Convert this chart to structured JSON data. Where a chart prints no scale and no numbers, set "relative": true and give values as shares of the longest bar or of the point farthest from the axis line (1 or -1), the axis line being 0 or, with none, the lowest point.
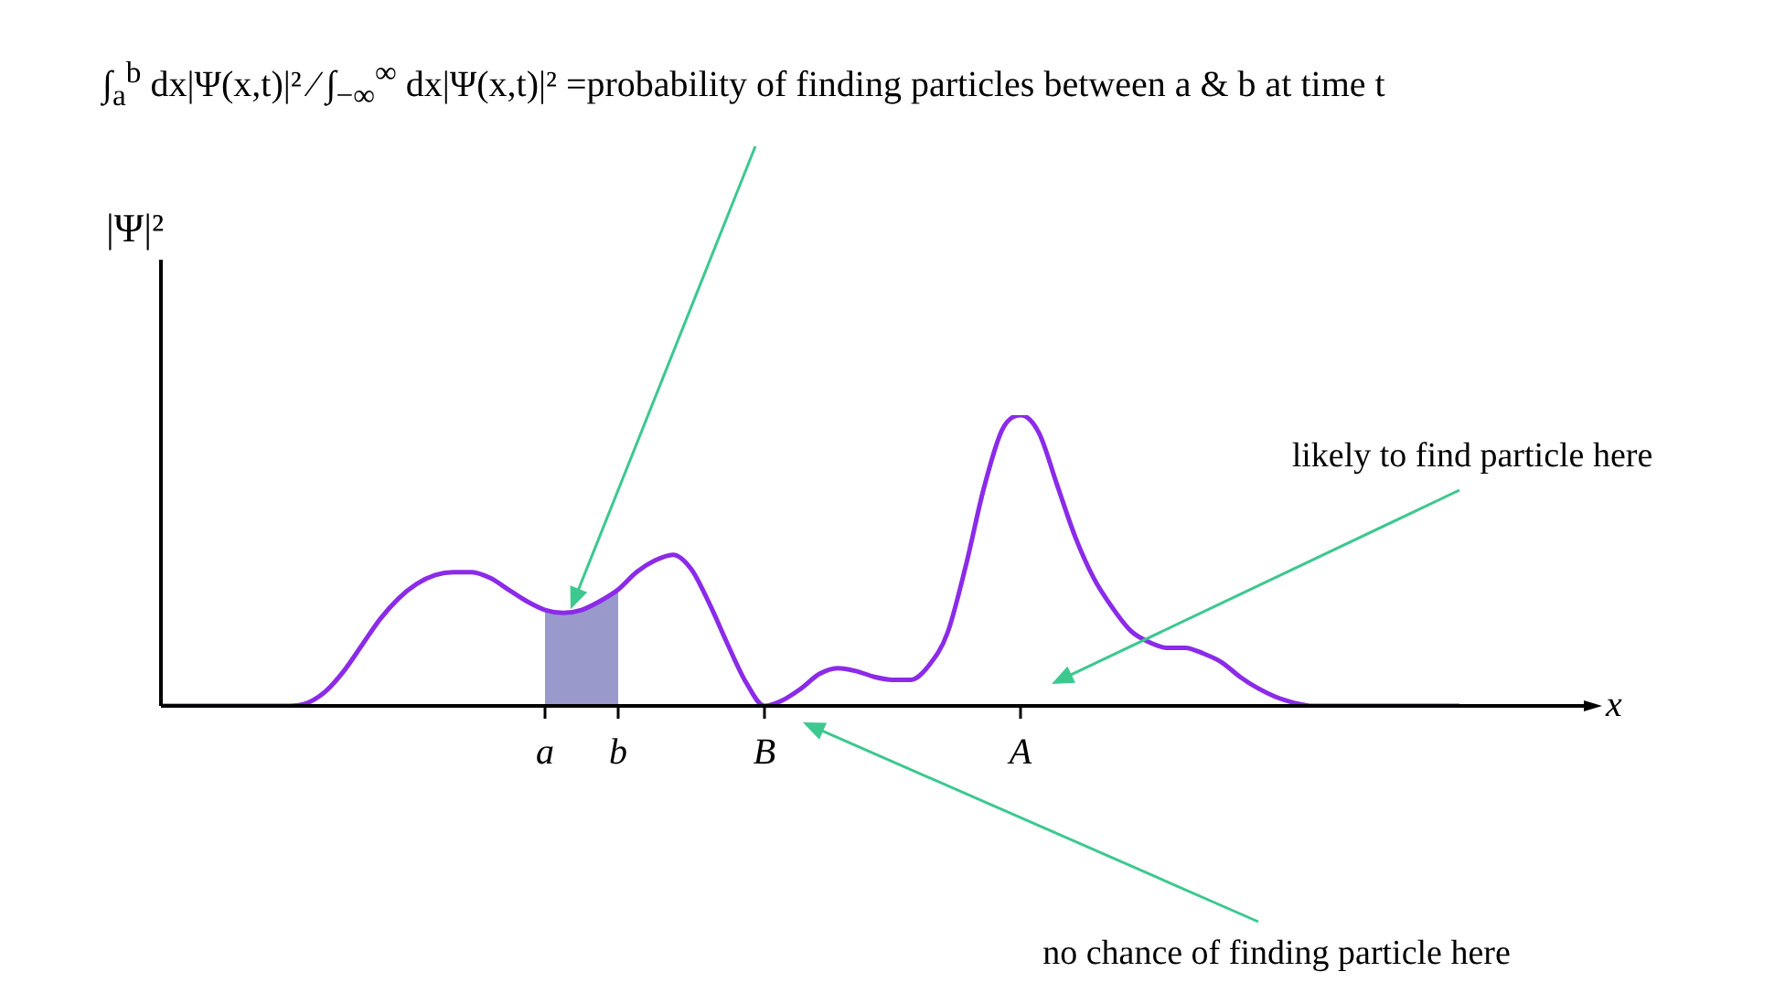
{
  "chart_data": {
    "type": "line",
    "relative": true,
    "title": "∫$_{a}$$^{b}$ dx|Ψ(x,t)|² ⁄ ∫$_{−∞}$$^{∞}$ dx|Ψ(x,t)|² =probability of finding particles between a & b at time t",
    "xlabel": "x",
    "ylabel": "|Ψ|²",
    "categories": [
      null,
      null,
      null,
      null,
      null,
      null,
      null,
      null,
      null,
      null,
      null,
      null,
      null,
      null,
      null,
      null,
      null,
      null,
      null,
      null,
      null,
      "a",
      null,
      null,
      null,
      "b",
      null,
      null,
      null,
      null,
      null,
      null,
      null,
      "B",
      null,
      null,
      null,
      null,
      null,
      null,
      null,
      null,
      null,
      null,
      null,
      null,
      null,
      "A",
      null,
      null,
      null,
      null,
      null,
      null,
      null,
      null,
      null,
      null,
      null,
      null,
      null,
      null,
      null,
      null,
      null,
      null,
      null,
      null,
      null,
      null,
      null,
      null,
      null,
      null,
      null,
      null,
      null,
      null,
      null
    ],
    "series": [
      {
        "color": "#8b2be8",
        "values": [
          0,
          0,
          0,
          0,
          0,
          0,
          0,
          0,
          0.01,
          0.05,
          0.12,
          0.21,
          0.3,
          0.37,
          0.42,
          0.45,
          0.46,
          0.46,
          0.44,
          0.4,
          0.36,
          0.33,
          0.32,
          0.33,
          0.36,
          0.4,
          0.46,
          0.5,
          0.52,
          0.47,
          0.35,
          0.21,
          0.08,
          0,
          0.02,
          0.06,
          0.11,
          0.13,
          0.12,
          0.1,
          0.09,
          0.09,
          0.14,
          0.25,
          0.48,
          0.75,
          0.95,
          1,
          0.94,
          0.76,
          0.58,
          0.44,
          0.34,
          0.26,
          0.22,
          0.2,
          0.2,
          0.18,
          0.15,
          0.1,
          0.06,
          0.03,
          0.01,
          0,
          0,
          0,
          0,
          0,
          0,
          0,
          0,
          0,
          null,
          null,
          null,
          null,
          null,
          null,
          null
        ]
      },
      {
        "type": "area",
        "color": "#9a99cc",
        "values": [
          null,
          null,
          null,
          null,
          null,
          null,
          null,
          null,
          null,
          null,
          null,
          null,
          null,
          null,
          null,
          null,
          null,
          null,
          null,
          null,
          null,
          0.33,
          0.32,
          0.33,
          0.36,
          0.4,
          null,
          null,
          null,
          null,
          null,
          null,
          null,
          null,
          null,
          null,
          null,
          null,
          null,
          null,
          null,
          null,
          null,
          null,
          null,
          null,
          null,
          null,
          null,
          null,
          null,
          null,
          null,
          null,
          null,
          null,
          null,
          null,
          null,
          null,
          null,
          null,
          null,
          null,
          null,
          null,
          null,
          null,
          null,
          null,
          null,
          null,
          null,
          null,
          null,
          null,
          null,
          null,
          null
        ]
      }
    ],
    "annotations": [
      "likely to find particle here",
      "no chance of finding particle here"
    ]
  }
}
